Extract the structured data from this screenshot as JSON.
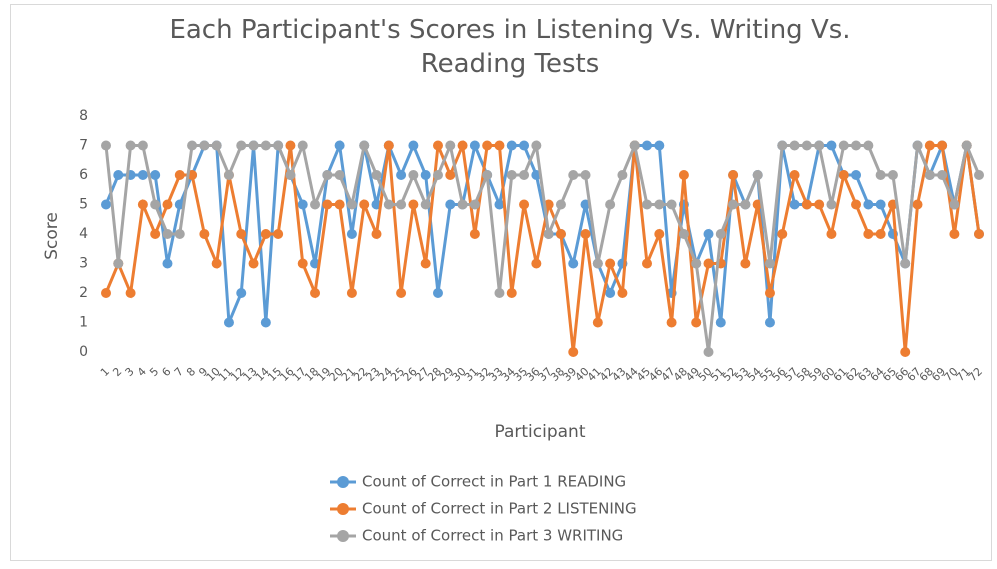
{
  "chart_data": {
    "type": "line",
    "title": "Each Participant's Scores in  Listening Vs. Writing Vs. Reading  Tests",
    "x_label": "Participant",
    "y_label": "Score",
    "categories": [
      1,
      2,
      3,
      4,
      5,
      6,
      7,
      8,
      9,
      10,
      11,
      12,
      13,
      14,
      15,
      16,
      17,
      18,
      19,
      20,
      21,
      22,
      23,
      24,
      25,
      26,
      27,
      28,
      29,
      30,
      31,
      32,
      33,
      34,
      35,
      36,
      37,
      38,
      39,
      40,
      41,
      42,
      43,
      44,
      45,
      46,
      47,
      48,
      49,
      50,
      51,
      52,
      53,
      54,
      55,
      56,
      57,
      58,
      59,
      60,
      61,
      62,
      63,
      64,
      65,
      66,
      67,
      68,
      69,
      70,
      71,
      72
    ],
    "series": [
      {
        "name": "Count of Correct in Part 1 READING",
        "color": "#5b9bd5",
        "values": [
          5,
          6,
          6,
          6,
          6,
          3,
          5,
          6,
          7,
          7,
          1,
          2,
          7,
          1,
          7,
          6,
          5,
          3,
          6,
          7,
          4,
          7,
          5,
          7,
          6,
          7,
          6,
          2,
          5,
          5,
          7,
          6,
          5,
          7,
          7,
          6,
          4,
          4,
          3,
          5,
          3,
          2,
          3,
          7,
          7,
          7,
          2,
          5,
          3,
          4,
          1,
          6,
          5,
          6,
          1,
          7,
          5,
          5,
          7,
          7,
          6,
          6,
          5,
          5,
          4,
          3,
          7,
          6,
          7,
          5,
          7,
          4
        ]
      },
      {
        "name": "Count of Correct in Part 2 LISTENING",
        "color": "#ed7d31",
        "values": [
          2,
          3,
          2,
          5,
          4,
          5,
          6,
          6,
          4,
          3,
          6,
          4,
          3,
          4,
          4,
          7,
          3,
          2,
          5,
          5,
          2,
          5,
          4,
          7,
          2,
          5,
          3,
          7,
          6,
          7,
          4,
          7,
          7,
          2,
          5,
          3,
          5,
          4,
          0,
          4,
          1,
          3,
          2,
          7,
          3,
          4,
          1,
          6,
          1,
          3,
          3,
          6,
          3,
          5,
          2,
          4,
          6,
          5,
          5,
          4,
          6,
          5,
          4,
          4,
          5,
          0,
          5,
          7,
          7,
          4,
          7,
          4
        ]
      },
      {
        "name": "Count of Correct in Part 3 WRITING",
        "color": "#a5a5a5",
        "values": [
          7,
          3,
          7,
          7,
          5,
          4,
          4,
          7,
          7,
          7,
          6,
          7,
          7,
          7,
          7,
          6,
          7,
          5,
          6,
          6,
          5,
          7,
          6,
          5,
          5,
          6,
          5,
          6,
          7,
          5,
          5,
          6,
          2,
          6,
          6,
          7,
          4,
          5,
          6,
          6,
          3,
          5,
          6,
          7,
          5,
          5,
          5,
          4,
          3,
          0,
          4,
          5,
          5,
          6,
          3,
          7,
          7,
          7,
          7,
          5,
          7,
          7,
          7,
          6,
          6,
          3,
          7,
          6,
          6,
          5,
          7,
          6
        ]
      }
    ],
    "ylim": [
      0,
      8
    ],
    "yticks": [
      0,
      1,
      2,
      3,
      4,
      5,
      6,
      7,
      8
    ],
    "legend": "bottom"
  }
}
